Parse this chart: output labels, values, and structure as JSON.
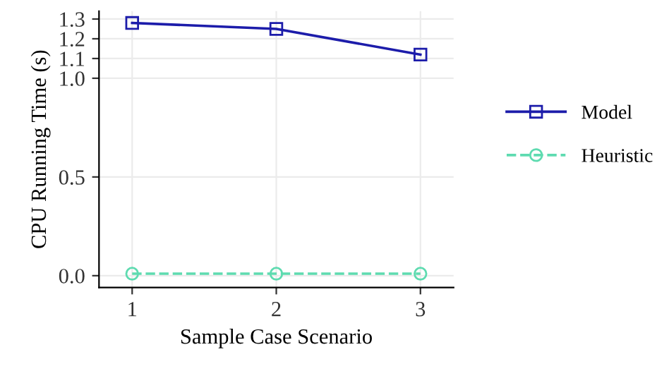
{
  "chart_data": {
    "type": "line",
    "xlabel": "Sample Case Scenario",
    "ylabel": "CPU Running Time (s)",
    "x": [
      1,
      2,
      3
    ],
    "series": [
      {
        "name": "Model",
        "color": "#1c1caa",
        "values": [
          1.28,
          1.25,
          1.12
        ],
        "marker": "square",
        "line_style": "solid"
      },
      {
        "name": "Heuristic",
        "color": "#5edbb0",
        "values": [
          0.01,
          0.01,
          0.01
        ],
        "marker": "circle",
        "line_style": "dashed"
      }
    ],
    "xlim": [
      0.77,
      3.23
    ],
    "xticks": [
      1,
      2,
      3
    ],
    "ylim": [
      -0.06,
      1.34
    ],
    "yticks": [
      {
        "value": 0,
        "label": "0.0"
      },
      0.5,
      {
        "value": 1,
        "label": "1.0"
      },
      1.1,
      1.2,
      1.3
    ],
    "grid": true,
    "legend": "right"
  }
}
